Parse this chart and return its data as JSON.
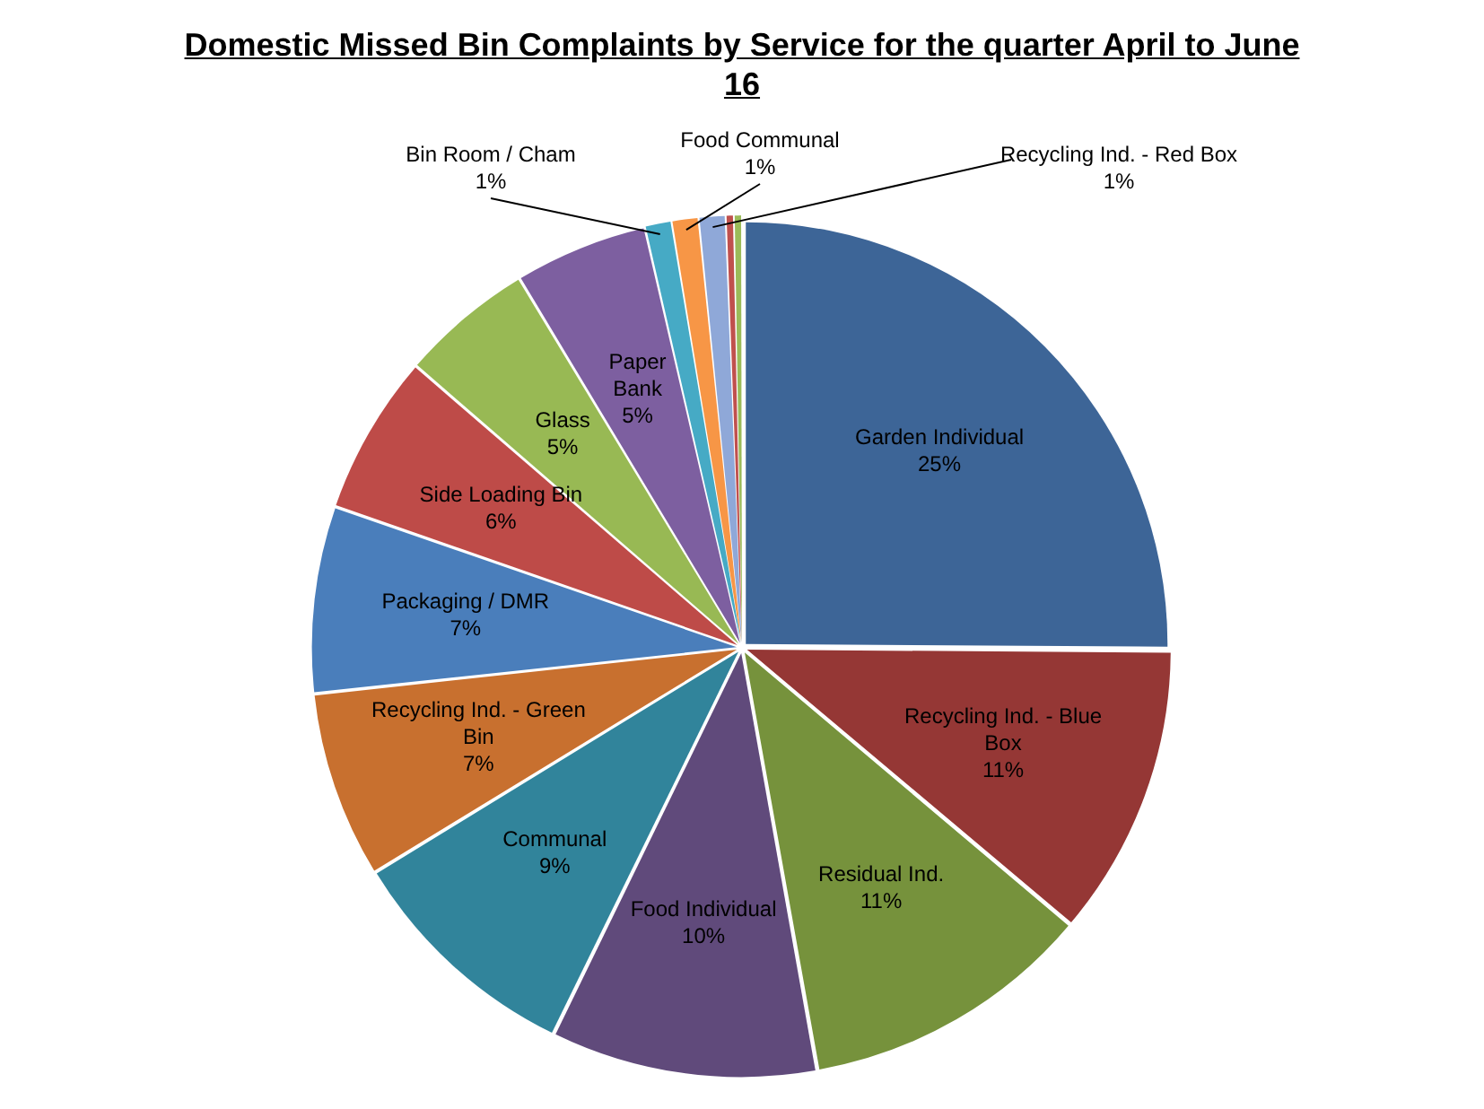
{
  "chart_data": {
    "type": "pie",
    "title": "Domestic Missed Bin Complaints by Service for the quarter April to June 16",
    "categories": [
      "Garden Individual",
      "Recycling Ind. - Blue Box",
      "Residual Ind.",
      "Food Individual",
      "Communal",
      "Recycling Ind. - Green Bin",
      "Packaging / DMR",
      "Side Loading Bin",
      "Glass",
      "Paper Bank",
      "Bin Room / Cham",
      "Food Communal",
      "Recycling Ind. - Red Box",
      null,
      null
    ],
    "values": [
      25,
      11,
      11,
      10,
      9,
      7,
      7,
      6,
      5,
      5,
      1,
      1,
      1,
      0.3,
      0.3
    ],
    "value_labels": [
      "25%",
      "11%",
      "11%",
      "10%",
      "9%",
      "7%",
      "7%",
      "6%",
      "5%",
      "5%",
      "1%",
      "1%",
      "1%",
      null,
      null
    ],
    "colors": [
      "#3d6597",
      "#953735",
      "#76923c",
      "#604a7b",
      "#31849b",
      "#c8702f",
      "#4a7ebb",
      "#be4b48",
      "#98b954",
      "#7d5fa0",
      "#46aac5",
      "#f79646",
      "#8fa8d8",
      "#c0504d",
      "#9bbb59"
    ],
    "legend": false
  }
}
